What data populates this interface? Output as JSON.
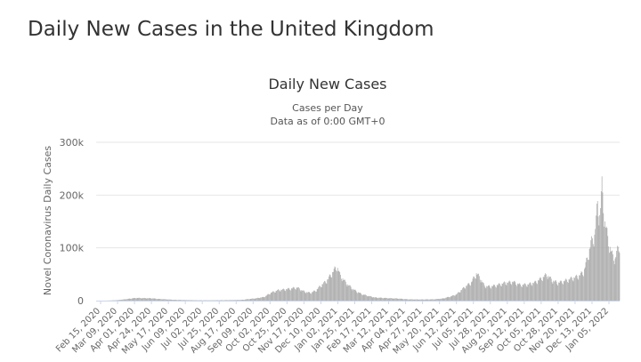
{
  "page_title": "Daily New Cases in the United Kingdom",
  "chart_data": {
    "type": "bar",
    "title": "Daily New Cases",
    "subtitle_lines": [
      "Cases per Day",
      "Data as of 0:00 GMT+0"
    ],
    "ylabel": "Novel Coronavirus Daily Cases",
    "xlabel": "",
    "ylim": [
      0,
      300000
    ],
    "y_ticks": [
      0,
      100000,
      200000,
      300000
    ],
    "y_tick_labels": [
      "0",
      "100k",
      "200k",
      "300k"
    ],
    "x_range": [
      "2020-02-15",
      "2022-01-28"
    ],
    "x_tick_labels": [
      "Feb 15, 2020",
      "Mar 09, 2020",
      "Apr 01, 2020",
      "Apr 24, 2020",
      "May 17, 2020",
      "Jun 09, 2020",
      "Jul 02, 2020",
      "Jul 25, 2020",
      "Aug 17, 2020",
      "Sep 09, 2020",
      "Oct 02, 2020",
      "Oct 25, 2020",
      "Nov 17, 2020",
      "Dec 10, 2020",
      "Jan 02, 2021",
      "Jan 25, 2021",
      "Feb 17, 2021",
      "Mar 12, 2021",
      "Apr 04, 2021",
      "Apr 27, 2021",
      "May 20, 2021",
      "Jun 12, 2021",
      "Jul 05, 2021",
      "Jul 28, 2021",
      "Aug 20, 2021",
      "Sep 12, 2021",
      "Oct 05, 2021",
      "Oct 28, 2021",
      "Nov 20, 2021",
      "Dec 13, 2021",
      "Jan 05, 2022"
    ],
    "series": [
      {
        "name": "Daily New Cases",
        "color": "#a8a8a8",
        "points": [
          [
            "2020-02-15",
            0
          ],
          [
            "2020-03-01",
            50
          ],
          [
            "2020-03-15",
            900
          ],
          [
            "2020-03-25",
            2500
          ],
          [
            "2020-04-05",
            4500
          ],
          [
            "2020-04-10",
            5200
          ],
          [
            "2020-04-20",
            4800
          ],
          [
            "2020-05-01",
            4500
          ],
          [
            "2020-05-10",
            3200
          ],
          [
            "2020-05-20",
            2500
          ],
          [
            "2020-06-01",
            1500
          ],
          [
            "2020-06-15",
            1100
          ],
          [
            "2020-07-01",
            700
          ],
          [
            "2020-07-20",
            600
          ],
          [
            "2020-08-01",
            800
          ],
          [
            "2020-08-20",
            1100
          ],
          [
            "2020-09-01",
            1500
          ],
          [
            "2020-09-10",
            3000
          ],
          [
            "2020-09-20",
            4500
          ],
          [
            "2020-10-01",
            7000
          ],
          [
            "2020-10-10",
            15000
          ],
          [
            "2020-10-20",
            20000
          ],
          [
            "2020-11-01",
            22000
          ],
          [
            "2020-11-10",
            24000
          ],
          [
            "2020-11-15",
            25000
          ],
          [
            "2020-11-25",
            17000
          ],
          [
            "2020-12-03",
            15000
          ],
          [
            "2020-12-10",
            19000
          ],
          [
            "2020-12-18",
            30000
          ],
          [
            "2020-12-25",
            38000
          ],
          [
            "2020-12-31",
            50000
          ],
          [
            "2021-01-05",
            60000
          ],
          [
            "2021-01-08",
            66000
          ],
          [
            "2021-01-12",
            50000
          ],
          [
            "2021-01-18",
            38000
          ],
          [
            "2021-01-25",
            28000
          ],
          [
            "2021-02-01",
            20000
          ],
          [
            "2021-02-10",
            13000
          ],
          [
            "2021-02-17",
            10000
          ],
          [
            "2021-03-01",
            6000
          ],
          [
            "2021-03-15",
            5000
          ],
          [
            "2021-04-01",
            4000
          ],
          [
            "2021-04-15",
            2500
          ],
          [
            "2021-05-01",
            2200
          ],
          [
            "2021-05-20",
            2500
          ],
          [
            "2021-06-01",
            4000
          ],
          [
            "2021-06-12",
            8000
          ],
          [
            "2021-06-20",
            12000
          ],
          [
            "2021-06-30",
            25000
          ],
          [
            "2021-07-10",
            35000
          ],
          [
            "2021-07-17",
            52000
          ],
          [
            "2021-07-22",
            44000
          ],
          [
            "2021-07-28",
            28000
          ],
          [
            "2021-08-05",
            27000
          ],
          [
            "2021-08-15",
            30000
          ],
          [
            "2021-08-25",
            34000
          ],
          [
            "2021-09-05",
            36000
          ],
          [
            "2021-09-15",
            30000
          ],
          [
            "2021-09-25",
            31000
          ],
          [
            "2021-10-05",
            35000
          ],
          [
            "2021-10-15",
            44000
          ],
          [
            "2021-10-21",
            50000
          ],
          [
            "2021-10-28",
            39000
          ],
          [
            "2021-11-05",
            34000
          ],
          [
            "2021-11-15",
            38000
          ],
          [
            "2021-11-25",
            43000
          ],
          [
            "2021-12-03",
            47000
          ],
          [
            "2021-12-10",
            55000
          ],
          [
            "2021-12-15",
            80000
          ],
          [
            "2021-12-20",
            110000
          ],
          [
            "2021-12-25",
            125000
          ],
          [
            "2021-12-29",
            185000
          ],
          [
            "2022-01-01",
            162000
          ],
          [
            "2022-01-04",
            218000
          ],
          [
            "2022-01-08",
            150000
          ],
          [
            "2022-01-12",
            120000
          ],
          [
            "2022-01-17",
            90000
          ],
          [
            "2022-01-22",
            80000
          ],
          [
            "2022-01-25",
            96000
          ],
          [
            "2022-01-28",
            108000
          ]
        ]
      }
    ]
  }
}
